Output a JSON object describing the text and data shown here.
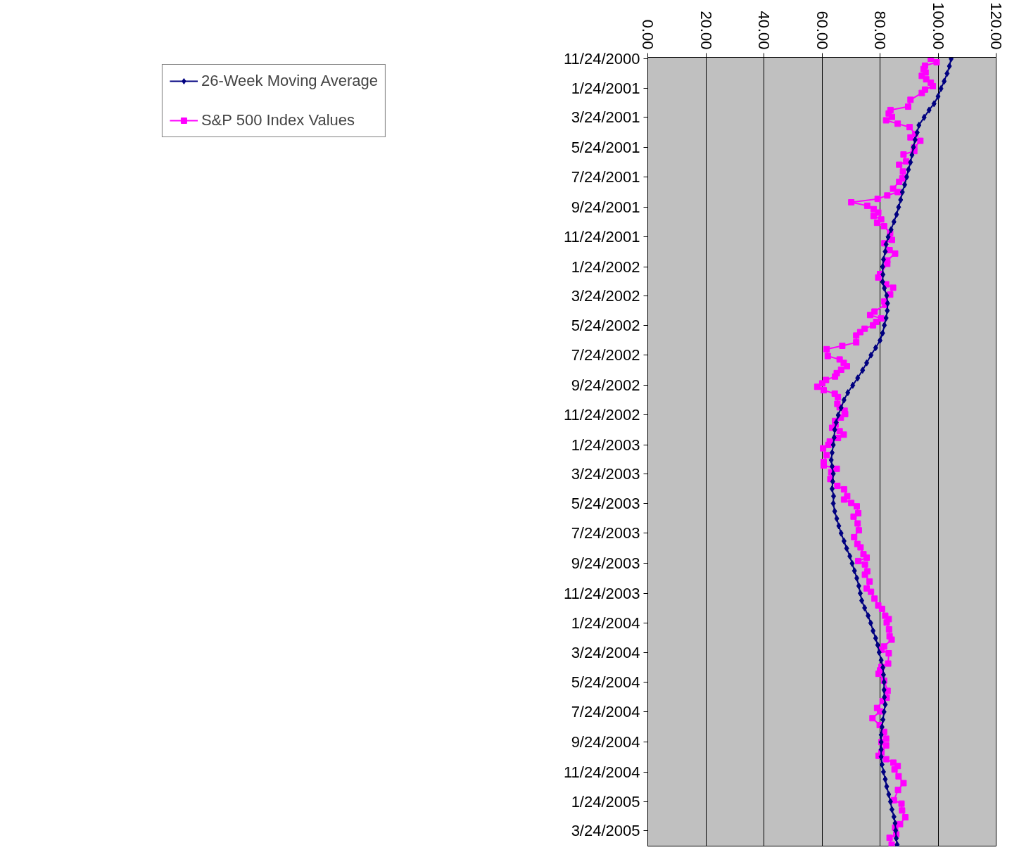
{
  "chart_data": {
    "type": "line",
    "orientation": "horizontal",
    "legend": "left",
    "grid": "x",
    "line_style": "solid",
    "xlim": [
      0,
      120
    ],
    "xticks": [
      {
        "value": 0,
        "label": "0.00"
      },
      {
        "value": 20,
        "label": "20.00"
      },
      {
        "value": 40,
        "label": "40.00"
      },
      {
        "value": 60,
        "label": "60.00"
      },
      {
        "value": 80,
        "label": "80.00"
      },
      {
        "value": 100,
        "label": "100.00"
      },
      {
        "value": 120,
        "label": "120.00"
      }
    ],
    "ylim": [
      "2005-04-25",
      "2000-11-21"
    ],
    "yticks": [
      {
        "value": "2000-11-24",
        "label": "11/24/2000"
      },
      {
        "value": "2001-01-24",
        "label": "1/24/2001"
      },
      {
        "value": "2001-03-24",
        "label": "3/24/2001"
      },
      {
        "value": "2001-05-24",
        "label": "5/24/2001"
      },
      {
        "value": "2001-07-24",
        "label": "7/24/2001"
      },
      {
        "value": "2001-09-24",
        "label": "9/24/2001"
      },
      {
        "value": "2001-11-24",
        "label": "11/24/2001"
      },
      {
        "value": "2002-01-24",
        "label": "1/24/2002"
      },
      {
        "value": "2002-03-24",
        "label": "3/24/2002"
      },
      {
        "value": "2002-05-24",
        "label": "5/24/2002"
      },
      {
        "value": "2002-07-24",
        "label": "7/24/2002"
      },
      {
        "value": "2002-09-24",
        "label": "9/24/2002"
      },
      {
        "value": "2002-11-24",
        "label": "11/24/2002"
      },
      {
        "value": "2003-01-24",
        "label": "1/24/2003"
      },
      {
        "value": "2003-03-24",
        "label": "3/24/2003"
      },
      {
        "value": "2003-05-24",
        "label": "5/24/2003"
      },
      {
        "value": "2003-07-24",
        "label": "7/24/2003"
      },
      {
        "value": "2003-09-24",
        "label": "9/24/2003"
      },
      {
        "value": "2003-11-24",
        "label": "11/24/2003"
      },
      {
        "value": "2004-01-24",
        "label": "1/24/2004"
      },
      {
        "value": "2004-03-24",
        "label": "3/24/2004"
      },
      {
        "value": "2004-05-24",
        "label": "5/24/2004"
      },
      {
        "value": "2004-07-24",
        "label": "7/24/2004"
      },
      {
        "value": "2004-09-24",
        "label": "9/24/2004"
      },
      {
        "value": "2004-11-24",
        "label": "11/24/2004"
      },
      {
        "value": "2005-01-24",
        "label": "1/24/2005"
      },
      {
        "value": "2005-03-24",
        "label": "3/24/2005"
      }
    ],
    "series": [
      {
        "name": "26-Week Moving Average",
        "color": "#000080",
        "marker": "diamond",
        "x": [
          "2000-11-24",
          "2000-12-09",
          "2000-12-24",
          "2001-01-09",
          "2001-01-24",
          "2001-02-09",
          "2001-02-24",
          "2001-03-09",
          "2001-03-24",
          "2001-04-09",
          "2001-04-24",
          "2001-05-09",
          "2001-05-24",
          "2001-06-09",
          "2001-06-24",
          "2001-07-09",
          "2001-07-24",
          "2001-08-09",
          "2001-08-24",
          "2001-09-09",
          "2001-09-24",
          "2001-10-09",
          "2001-10-24",
          "2001-11-09",
          "2001-11-24",
          "2001-12-09",
          "2001-12-24",
          "2002-01-09",
          "2002-01-24",
          "2002-02-09",
          "2002-02-24",
          "2002-03-09",
          "2002-03-24",
          "2002-04-09",
          "2002-04-24",
          "2002-05-09",
          "2002-05-24",
          "2002-06-09",
          "2002-06-24",
          "2002-07-09",
          "2002-07-24",
          "2002-08-09",
          "2002-08-24",
          "2002-09-09",
          "2002-09-24",
          "2002-10-09",
          "2002-10-24",
          "2002-11-09",
          "2002-11-24",
          "2002-12-09",
          "2002-12-24",
          "2003-01-09",
          "2003-01-24",
          "2003-02-09",
          "2003-02-24",
          "2003-03-09",
          "2003-03-24",
          "2003-04-09",
          "2003-04-24",
          "2003-05-09",
          "2003-05-24",
          "2003-06-09",
          "2003-06-24",
          "2003-07-09",
          "2003-07-24",
          "2003-08-09",
          "2003-08-24",
          "2003-09-09",
          "2003-09-24",
          "2003-10-09",
          "2003-10-24",
          "2003-11-09",
          "2003-11-24",
          "2003-12-09",
          "2003-12-24",
          "2004-01-09",
          "2004-01-24",
          "2004-02-09",
          "2004-02-24",
          "2004-03-09",
          "2004-03-24",
          "2004-04-09",
          "2004-04-24",
          "2004-05-09",
          "2004-05-24",
          "2004-06-09",
          "2004-06-24",
          "2004-07-09",
          "2004-07-24",
          "2004-08-09",
          "2004-08-24",
          "2004-09-09",
          "2004-09-24",
          "2004-10-09",
          "2004-10-24",
          "2004-11-09",
          "2004-11-24",
          "2004-12-09",
          "2004-12-24",
          "2005-01-09",
          "2005-01-24",
          "2005-02-09",
          "2005-02-24",
          "2005-03-09",
          "2005-03-24",
          "2005-04-09",
          "2005-04-22"
        ],
        "values": [
          104.5,
          103.9,
          103.1,
          102.1,
          101.0,
          100.0,
          98.6,
          96.9,
          95.2,
          93.4,
          92.8,
          92.1,
          91.5,
          91.0,
          90.5,
          89.8,
          89.2,
          88.5,
          87.7,
          87.1,
          86.4,
          85.7,
          84.8,
          83.8,
          82.8,
          82.1,
          81.8,
          81.2,
          80.9,
          81.0,
          80.9,
          81.5,
          82.3,
          82.6,
          82.5,
          82.1,
          81.5,
          80.9,
          80.0,
          78.5,
          76.9,
          75.4,
          74.0,
          72.3,
          70.6,
          68.9,
          67.6,
          66.6,
          65.6,
          64.9,
          64.4,
          64.2,
          63.9,
          63.5,
          63.2,
          63.5,
          63.9,
          63.7,
          63.5,
          64.0,
          63.9,
          64.4,
          65.1,
          65.8,
          66.6,
          67.6,
          68.5,
          69.6,
          70.4,
          71.2,
          72.0,
          72.7,
          73.2,
          73.7,
          74.7,
          75.9,
          76.8,
          77.6,
          78.5,
          79.2,
          79.7,
          80.4,
          81.0,
          81.2,
          81.4,
          81.4,
          81.5,
          81.8,
          81.4,
          81.0,
          80.7,
          80.4,
          80.4,
          80.4,
          80.4,
          80.7,
          81.2,
          81.8,
          82.3,
          83.0,
          83.6,
          84.1,
          84.8,
          85.2,
          85.4,
          85.6,
          85.9
        ]
      },
      {
        "name": "S&P 500 Index Values",
        "color": "#ff00ff",
        "marker": "square",
        "x": [
          "2000-11-24",
          "2000-12-01",
          "2000-12-08",
          "2000-12-15",
          "2000-12-22",
          "2000-12-29",
          "2001-01-05",
          "2001-01-12",
          "2001-01-19",
          "2001-01-26",
          "2001-02-02",
          "2001-02-16",
          "2001-03-02",
          "2001-03-09",
          "2001-03-16",
          "2001-03-23",
          "2001-03-30",
          "2001-04-06",
          "2001-04-13",
          "2001-04-27",
          "2001-05-04",
          "2001-05-11",
          "2001-05-25",
          "2001-06-01",
          "2001-06-08",
          "2001-06-22",
          "2001-06-29",
          "2001-07-13",
          "2001-07-27",
          "2001-08-03",
          "2001-08-17",
          "2001-08-24",
          "2001-08-31",
          "2001-09-07",
          "2001-09-14",
          "2001-09-21",
          "2001-09-28",
          "2001-10-05",
          "2001-10-12",
          "2001-10-19",
          "2001-10-26",
          "2001-11-02",
          "2001-11-16",
          "2001-11-30",
          "2001-12-07",
          "2001-12-21",
          "2001-12-28",
          "2002-01-11",
          "2002-01-18",
          "2002-02-08",
          "2002-02-15",
          "2002-03-01",
          "2002-03-08",
          "2002-03-22",
          "2002-04-05",
          "2002-04-12",
          "2002-04-26",
          "2002-05-03",
          "2002-05-10",
          "2002-05-17",
          "2002-05-24",
          "2002-05-31",
          "2002-06-07",
          "2002-06-14",
          "2002-06-28",
          "2002-07-05",
          "2002-07-12",
          "2002-07-26",
          "2002-08-02",
          "2002-08-09",
          "2002-08-16",
          "2002-08-23",
          "2002-08-30",
          "2002-09-06",
          "2002-09-13",
          "2002-09-20",
          "2002-09-27",
          "2002-10-04",
          "2002-10-11",
          "2002-10-18",
          "2002-11-01",
          "2002-11-08",
          "2002-11-15",
          "2002-11-22",
          "2002-11-29",
          "2002-12-06",
          "2002-12-13",
          "2002-12-20",
          "2002-12-27",
          "2003-01-03",
          "2003-01-10",
          "2003-01-17",
          "2003-01-24",
          "2003-01-31",
          "2003-02-14",
          "2003-02-28",
          "2003-03-07",
          "2003-03-14",
          "2003-03-21",
          "2003-04-04",
          "2003-04-18",
          "2003-04-25",
          "2003-05-09",
          "2003-05-16",
          "2003-05-23",
          "2003-05-30",
          "2003-06-13",
          "2003-06-20",
          "2003-07-04",
          "2003-07-18",
          "2003-08-01",
          "2003-08-15",
          "2003-08-22",
          "2003-09-05",
          "2003-09-12",
          "2003-09-19",
          "2003-09-26",
          "2003-10-10",
          "2003-10-17",
          "2003-10-31",
          "2003-11-14",
          "2003-11-21",
          "2003-12-05",
          "2003-12-19",
          "2003-12-26",
          "2004-01-09",
          "2004-01-16",
          "2004-01-23",
          "2004-02-06",
          "2004-02-20",
          "2004-02-27",
          "2004-03-12",
          "2004-03-19",
          "2004-03-26",
          "2004-04-16",
          "2004-04-23",
          "2004-04-30",
          "2004-05-07",
          "2004-05-21",
          "2004-06-11",
          "2004-06-25",
          "2004-07-02",
          "2004-07-16",
          "2004-07-23",
          "2004-08-06",
          "2004-08-20",
          "2004-09-03",
          "2004-09-17",
          "2004-09-24",
          "2004-10-01",
          "2004-10-15",
          "2004-10-22",
          "2004-10-29",
          "2004-11-05",
          "2004-11-12",
          "2004-11-19",
          "2004-12-03",
          "2004-12-17",
          "2004-12-31",
          "2005-01-21",
          "2005-01-28",
          "2005-02-11",
          "2005-02-25",
          "2005-03-11",
          "2005-03-18",
          "2005-04-01",
          "2005-04-08",
          "2005-04-22"
        ],
        "values": [
          97.5,
          99.5,
          95.5,
          95.0,
          95.7,
          94.4,
          95.9,
          97.5,
          98.2,
          95.5,
          94.4,
          90.5,
          89.7,
          83.6,
          83.0,
          84.1,
          82.1,
          86.1,
          90.2,
          92.1,
          90.5,
          93.9,
          91.8,
          91.8,
          88.1,
          89.0,
          86.6,
          87.9,
          87.7,
          86.6,
          84.5,
          86.1,
          82.5,
          79.2,
          70.1,
          75.6,
          77.8,
          79.4,
          77.8,
          80.4,
          79.0,
          81.4,
          83.5,
          84.1,
          81.5,
          83.3,
          85.2,
          82.5,
          82.5,
          80.0,
          79.4,
          82.1,
          84.5,
          83.5,
          81.5,
          81.8,
          78.1,
          76.6,
          80.4,
          78.7,
          77.6,
          74.7,
          73.2,
          71.8,
          71.8,
          67.0,
          61.6,
          62.0,
          66.1,
          67.5,
          68.6,
          66.6,
          65.1,
          64.5,
          61.4,
          60.1,
          58.4,
          60.6,
          64.4,
          65.5,
          65.3,
          66.1,
          67.8,
          68.0,
          66.5,
          64.5,
          64.7,
          63.5,
          66.1,
          67.5,
          65.5,
          62.7,
          62.2,
          60.4,
          61.6,
          60.6,
          60.6,
          65.1,
          63.2,
          62.9,
          65.3,
          67.6,
          68.7,
          67.6,
          70.1,
          72.0,
          72.5,
          70.9,
          72.3,
          72.7,
          71.1,
          72.2,
          73.3,
          74.3,
          75.4,
          72.5,
          74.8,
          75.6,
          74.8,
          76.4,
          75.4,
          76.9,
          78.1,
          79.4,
          80.7,
          81.8,
          83.0,
          82.3,
          83.1,
          83.3,
          84.0,
          81.4,
          80.5,
          83.0,
          82.8,
          80.5,
          80.0,
          79.5,
          81.4,
          82.6,
          82.3,
          80.9,
          79.0,
          80.0,
          77.4,
          79.9,
          81.4,
          82.1,
          80.5,
          82.1,
          80.5,
          79.5,
          82.1,
          84.6,
          86.1,
          85.0,
          86.4,
          88.1,
          86.2,
          84.8,
          87.4,
          87.6,
          88.7,
          86.9,
          85.2,
          85.6,
          83.3,
          84.0
        ]
      }
    ]
  }
}
